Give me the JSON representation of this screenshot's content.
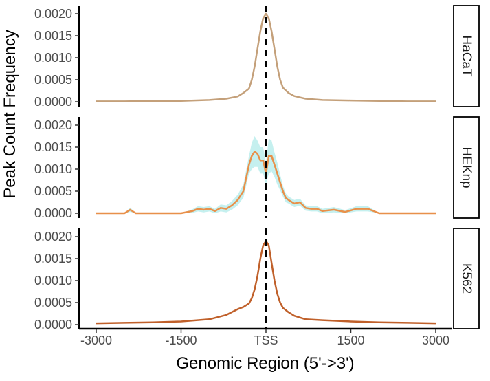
{
  "chart_data": {
    "type": "line",
    "xlabel": "Genomic Region (5'->3')",
    "ylabel": "Peak Count Frequency",
    "x_ticks": [
      {
        "value": -3000,
        "label": "-3000"
      },
      {
        "value": -1500,
        "label": "-1500"
      },
      {
        "value": 0,
        "label": "TSS"
      },
      {
        "value": 1500,
        "label": "1500"
      },
      {
        "value": 3000,
        "label": "3000"
      }
    ],
    "xlim": [
      -3000,
      3000
    ],
    "ylim": [
      0,
      0.0021
    ],
    "y_ticks": [
      "0.0000",
      "0.0005",
      "0.0010",
      "0.0015",
      "0.0020"
    ],
    "vline": {
      "x": 0,
      "style": "dashed"
    },
    "grid": false,
    "panels": [
      {
        "name": "HaCaT",
        "color": "#c4a07a",
        "x": [
          -3000,
          -2500,
          -2000,
          -1500,
          -1000,
          -700,
          -500,
          -400,
          -300,
          -250,
          -200,
          -150,
          -100,
          -50,
          0,
          50,
          100,
          150,
          200,
          250,
          300,
          400,
          500,
          700,
          1000,
          1500,
          2000,
          2500,
          3000
        ],
        "y": [
          1e-05,
          1e-05,
          2e-05,
          2e-05,
          4e-05,
          7e-05,
          0.00012,
          0.0002,
          0.0003,
          0.0005,
          0.0008,
          0.0012,
          0.0016,
          0.0019,
          0.002,
          0.0019,
          0.0016,
          0.0012,
          0.0008,
          0.0005,
          0.00032,
          0.0002,
          0.00013,
          7e-05,
          4e-05,
          3e-05,
          2e-05,
          1e-05,
          1e-05
        ]
      },
      {
        "name": "HEKnp",
        "color": "#e8904a",
        "band_color": "#bfeeed",
        "x": [
          -3000,
          -2500,
          -2400,
          -2300,
          -2000,
          -1500,
          -1300,
          -1200,
          -1100,
          -1000,
          -900,
          -800,
          -700,
          -600,
          -500,
          -400,
          -350,
          -300,
          -250,
          -200,
          -150,
          -100,
          -50,
          0,
          50,
          100,
          150,
          200,
          250,
          300,
          350,
          400,
          500,
          600,
          700,
          800,
          900,
          1000,
          1200,
          1400,
          1600,
          1800,
          2000,
          2200,
          2500,
          3000
        ],
        "y": [
          0.0,
          0.0,
          8e-05,
          0.0,
          0.0,
          0.0,
          5e-05,
          0.0001,
          8e-05,
          0.0001,
          5e-05,
          0.00012,
          0.0001,
          0.00018,
          0.0003,
          0.0005,
          0.0008,
          0.0011,
          0.0013,
          0.0014,
          0.00135,
          0.0012,
          0.0012,
          0.0009,
          0.0013,
          0.0013,
          0.0011,
          0.0009,
          0.0007,
          0.0005,
          0.00035,
          0.0003,
          0.00022,
          0.00025,
          0.00012,
          0.0001,
          0.0001,
          5e-05,
          8e-05,
          3e-05,
          0.0001,
          0.0001,
          0.0,
          0.0,
          0.0,
          0.0
        ],
        "band": [
          0.0,
          0.0,
          5e-05,
          0.0,
          0.0,
          0.0,
          4e-05,
          6e-05,
          6e-05,
          6e-05,
          5e-05,
          8e-05,
          8e-05,
          0.0001,
          0.00012,
          0.00015,
          0.00018,
          0.0002,
          0.0003,
          0.00035,
          0.0003,
          0.0003,
          0.0003,
          0.00025,
          0.0004,
          0.00035,
          0.00028,
          0.00025,
          0.00018,
          0.00012,
          0.0001,
          8e-05,
          8e-05,
          8e-05,
          6e-05,
          6e-05,
          6e-05,
          5e-05,
          6e-05,
          4e-05,
          6e-05,
          6e-05,
          0.0,
          0.0,
          0.0,
          0.0
        ]
      },
      {
        "name": "K562",
        "color": "#c0602a",
        "x": [
          -3000,
          -2500,
          -2000,
          -1500,
          -1000,
          -700,
          -500,
          -400,
          -300,
          -250,
          -200,
          -150,
          -100,
          -50,
          0,
          50,
          100,
          150,
          200,
          250,
          300,
          400,
          500,
          700,
          1000,
          1500,
          2000,
          2500,
          3000
        ],
        "y": [
          3e-05,
          4e-05,
          5e-05,
          7e-05,
          0.00012,
          0.00022,
          0.00035,
          0.0004,
          0.00048,
          0.0006,
          0.0008,
          0.0011,
          0.0015,
          0.0018,
          0.0019,
          0.0018,
          0.0014,
          0.001,
          0.0007,
          0.0005,
          0.00038,
          0.00028,
          0.0002,
          0.00012,
          0.0001,
          7e-05,
          5e-05,
          4e-05,
          3e-05
        ]
      }
    ]
  }
}
